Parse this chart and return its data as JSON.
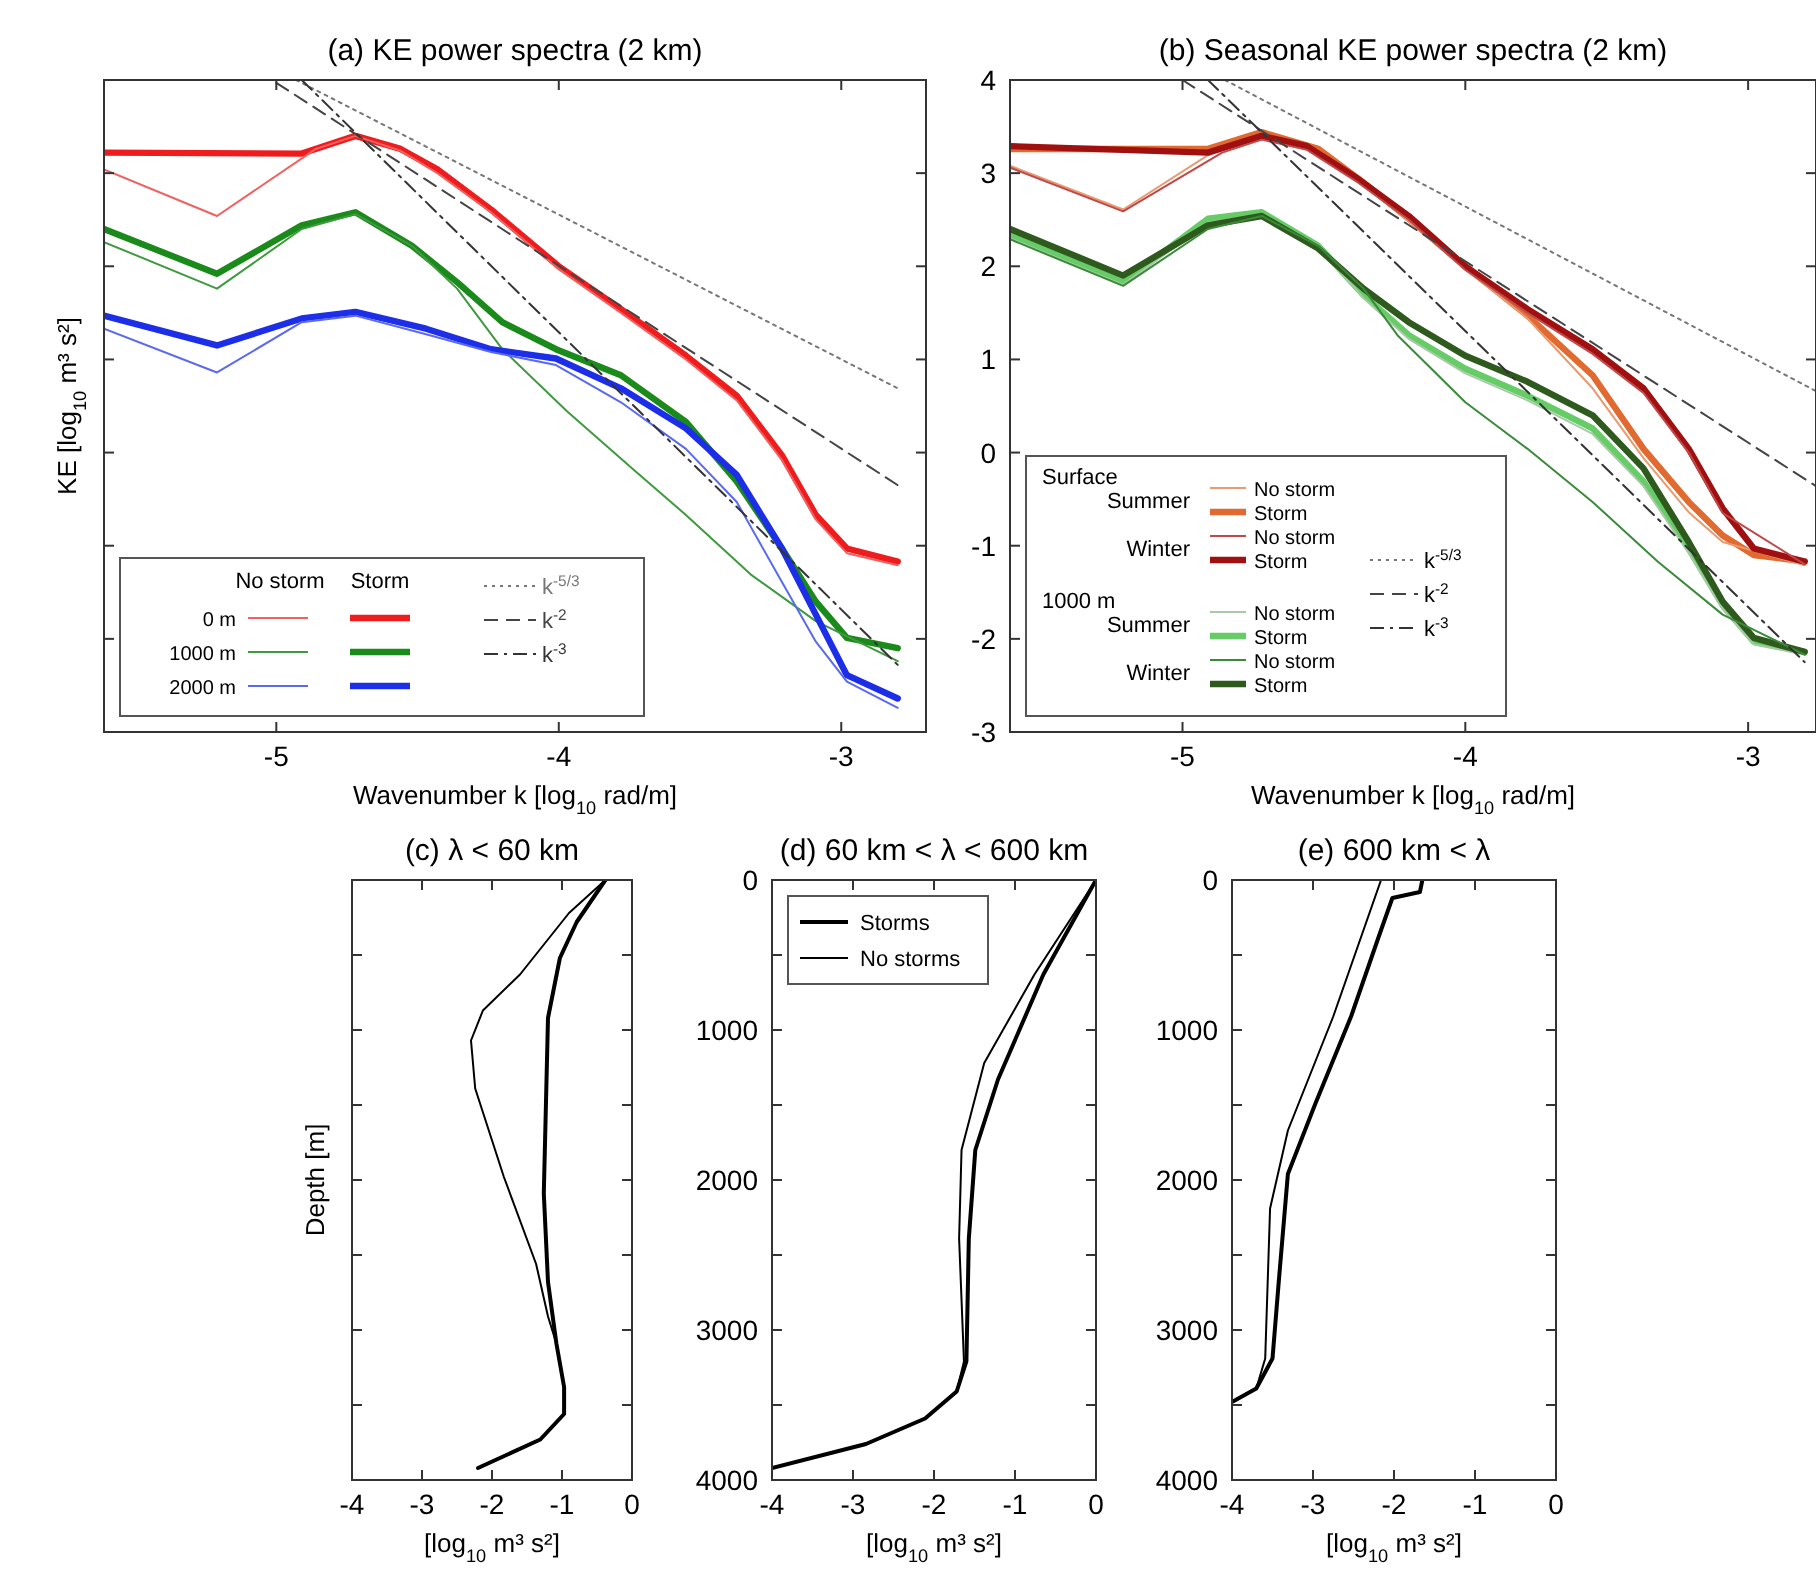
{
  "chart_data": [
    {
      "type": "line",
      "title": "(a) KE power spectra (2 km)",
      "xlabel": "Wavenumber k [log$_{10}$ rad/m]",
      "ylabel": "KE [log$_{10}$ m³ s²]",
      "xlim": [
        -5.61,
        -2.7
      ],
      "xticks": [
        -5,
        -4,
        -3
      ],
      "ylim": [
        -3,
        4
      ],
      "yticks": [
        -3,
        -2,
        -1,
        0,
        1,
        2,
        3,
        4
      ],
      "tick_labels": "x",
      "legend": "bottom left",
      "annotations": [
        "No storm",
        "Storm",
        "0 m",
        "1000 m",
        "2000 m"
      ],
      "series": [
        {
          "color": "#ee1c1c",
          "line_style": "solid",
          "x": [
            -5.61,
            -4.91,
            -4.72,
            -4.56,
            -4.43,
            -4.24,
            -4.0,
            -3.78,
            -3.55,
            -3.37,
            -3.21,
            -3.09,
            -2.98,
            -2.8
          ],
          "values": [
            3.22,
            3.21,
            3.4,
            3.26,
            3.04,
            2.61,
            2.0,
            1.54,
            1.04,
            0.61,
            -0.03,
            -0.67,
            -1.03,
            -1.17
          ]
        },
        {
          "color": "#f06060",
          "line_style": "solid",
          "x": [
            -5.61,
            -5.21,
            -4.86,
            -4.72,
            -4.56,
            -4.43,
            -4.24,
            -4.0,
            -3.78,
            -3.55,
            -3.37,
            -3.21,
            -3.09,
            -2.98,
            -2.8
          ],
          "values": [
            3.04,
            2.54,
            3.26,
            3.4,
            3.24,
            3.0,
            2.58,
            1.97,
            1.5,
            1.0,
            0.56,
            -0.08,
            -0.72,
            -1.08,
            -1.21
          ]
        },
        {
          "color": "#1a8a1a",
          "line_style": "solid",
          "x": [
            -5.61,
            -5.21,
            -4.91,
            -4.72,
            -4.52,
            -4.36,
            -4.2,
            -4.01,
            -3.78,
            -3.55,
            -3.37,
            -3.21,
            -3.09,
            -2.98,
            -2.8
          ],
          "values": [
            2.4,
            1.92,
            2.44,
            2.58,
            2.22,
            1.83,
            1.4,
            1.11,
            0.83,
            0.33,
            -0.31,
            -1.03,
            -1.6,
            -1.99,
            -2.1
          ]
        },
        {
          "color": "#3f9a3f",
          "line_style": "solid",
          "x": [
            -5.61,
            -5.21,
            -4.91,
            -4.72,
            -4.52,
            -4.36,
            -4.2,
            -3.97,
            -3.74,
            -3.55,
            -3.32,
            -3.09,
            -2.8
          ],
          "values": [
            2.26,
            1.76,
            2.4,
            2.56,
            2.22,
            1.76,
            1.11,
            0.44,
            -0.17,
            -0.67,
            -1.31,
            -1.81,
            -2.24
          ]
        },
        {
          "color": "#1c2ee8",
          "line_style": "solid",
          "x": [
            -5.61,
            -5.21,
            -4.91,
            -4.72,
            -4.47,
            -4.24,
            -4.01,
            -3.78,
            -3.55,
            -3.37,
            -3.21,
            -3.09,
            -2.98,
            -2.8
          ],
          "values": [
            1.47,
            1.15,
            1.44,
            1.51,
            1.33,
            1.11,
            1.01,
            0.69,
            0.26,
            -0.24,
            -1.03,
            -1.74,
            -2.39,
            -2.64
          ]
        },
        {
          "color": "#5a6af0",
          "line_style": "solid",
          "x": [
            -5.61,
            -5.21,
            -4.91,
            -4.72,
            -4.47,
            -4.24,
            -4.01,
            -3.78,
            -3.55,
            -3.37,
            -3.21,
            -3.09,
            -2.98,
            -2.8
          ],
          "values": [
            1.33,
            0.86,
            1.4,
            1.47,
            1.27,
            1.08,
            0.94,
            0.54,
            0.04,
            -0.53,
            -1.39,
            -2.03,
            -2.46,
            -2.74
          ]
        },
        {
          "name": "k$^{-5/3}$",
          "color": "#777777",
          "line_style": "dotted",
          "x": [
            -4.93,
            -2.8
          ],
          "values": [
            4.0,
            0.69
          ]
        },
        {
          "name": "k$^{-2}$",
          "color": "#444444",
          "line_style": "dashed",
          "x": [
            -5.0,
            -2.8
          ],
          "values": [
            3.97,
            -0.35
          ]
        },
        {
          "name": "k$^{-3}$",
          "color": "#333333",
          "line_style": "dashdot",
          "x": [
            -4.91,
            -2.8
          ],
          "values": [
            4.0,
            -2.28
          ]
        }
      ]
    },
    {
      "type": "line",
      "title": "(b) Seasonal KE power spectra (2 km)",
      "xlabel": "Wavenumber k [log$_{10}$ rad/m]",
      "xlim": [
        -5.61,
        -2.76
      ],
      "xticks": [
        -5,
        -4,
        -3
      ],
      "ylim": [
        -3,
        4
      ],
      "yticks": [
        -3,
        -2,
        -1,
        0,
        1,
        2,
        3,
        4
      ],
      "legend": "bottom left",
      "annotations": [
        "Surface",
        "Summer",
        "Winter",
        "1000 m",
        "Summer",
        "Winter"
      ],
      "series": [
        {
          "name": "Storm",
          "color": "#e06a30",
          "line_style": "solid",
          "x": [
            -5.61,
            -4.91,
            -4.72,
            -4.52,
            -4.36,
            -4.2,
            -4.0,
            -3.78,
            -3.55,
            -3.37,
            -3.21,
            -3.09,
            -2.98,
            -2.8
          ],
          "values": [
            3.26,
            3.26,
            3.44,
            3.26,
            2.9,
            2.51,
            2.0,
            1.47,
            0.83,
            0.04,
            -0.53,
            -0.89,
            -1.1,
            -1.17
          ]
        },
        {
          "name": "No storm",
          "color": "#e89a70",
          "line_style": "solid",
          "x": [
            -5.61,
            -5.21,
            -4.86,
            -4.72,
            -4.52,
            -4.36,
            -4.2,
            -4.0,
            -3.78,
            -3.55,
            -3.37,
            -3.21,
            -3.09,
            -2.8
          ],
          "values": [
            3.08,
            2.61,
            3.29,
            3.4,
            3.24,
            2.88,
            2.48,
            1.97,
            1.44,
            0.69,
            -0.06,
            -0.64,
            -0.96,
            -1.21
          ]
        },
        {
          "name": "Storm",
          "color": "#a01010",
          "line_style": "solid",
          "x": [
            -5.61,
            -4.91,
            -4.72,
            -4.56,
            -4.38,
            -4.2,
            -4.0,
            -3.78,
            -3.55,
            -3.37,
            -3.21,
            -3.09,
            -2.98,
            -2.8
          ],
          "values": [
            3.29,
            3.22,
            3.4,
            3.29,
            2.94,
            2.54,
            2.0,
            1.54,
            1.11,
            0.69,
            0.04,
            -0.6,
            -1.03,
            -1.17
          ]
        },
        {
          "name": "No storm",
          "color": "#c04848",
          "line_style": "solid",
          "x": [
            -5.61,
            -5.21,
            -4.86,
            -4.72,
            -4.56,
            -4.38,
            -4.2,
            -4.0,
            -3.78,
            -3.55,
            -3.37,
            -3.21,
            -3.09,
            -2.8
          ],
          "values": [
            3.06,
            2.59,
            3.22,
            3.36,
            3.25,
            2.9,
            2.5,
            1.96,
            1.5,
            1.06,
            0.64,
            0.0,
            -0.65,
            -1.2
          ]
        },
        {
          "name": "Storm",
          "color": "#66cc66",
          "line_style": "solid",
          "x": [
            -5.61,
            -5.21,
            -4.91,
            -4.72,
            -4.52,
            -4.36,
            -4.2,
            -4.0,
            -3.78,
            -3.55,
            -3.37,
            -3.21,
            -3.09,
            -2.98,
            -2.8
          ],
          "values": [
            2.33,
            1.83,
            2.51,
            2.58,
            2.22,
            1.69,
            1.26,
            0.9,
            0.61,
            0.26,
            -0.31,
            -1.03,
            -1.64,
            -2.03,
            -2.14
          ]
        },
        {
          "name": "No storm",
          "color": "#a8c8a8",
          "line_style": "solid",
          "x": [
            -5.61,
            -5.21,
            -4.91,
            -4.72,
            -4.52,
            -4.36,
            -4.2,
            -4.0,
            -3.78,
            -3.55,
            -3.37,
            -3.21,
            -3.09,
            -2.98,
            -2.8
          ],
          "values": [
            2.3,
            1.8,
            2.47,
            2.55,
            2.2,
            1.66,
            1.22,
            0.85,
            0.56,
            0.2,
            -0.36,
            -1.08,
            -1.68,
            -2.06,
            -2.17
          ]
        },
        {
          "name": "Storm",
          "color": "#2e5a1e",
          "line_style": "solid",
          "x": [
            -5.61,
            -5.21,
            -4.91,
            -4.72,
            -4.52,
            -4.36,
            -4.2,
            -4.0,
            -3.78,
            -3.55,
            -3.37,
            -3.21,
            -3.09,
            -2.98,
            -2.8
          ],
          "values": [
            2.4,
            1.9,
            2.44,
            2.54,
            2.19,
            1.76,
            1.4,
            1.04,
            0.76,
            0.4,
            -0.17,
            -0.96,
            -1.6,
            -1.99,
            -2.14
          ]
        },
        {
          "name": "No storm",
          "color": "#3a8a3a",
          "line_style": "solid",
          "x": [
            -5.61,
            -5.21,
            -4.91,
            -4.72,
            -4.52,
            -4.36,
            -4.24,
            -4.0,
            -3.78,
            -3.55,
            -3.32,
            -3.09,
            -2.8
          ],
          "values": [
            2.29,
            1.79,
            2.4,
            2.54,
            2.22,
            1.76,
            1.26,
            0.54,
            0.04,
            -0.53,
            -1.17,
            -1.74,
            -2.17
          ]
        },
        {
          "name": "k$^{-5/3}$",
          "color": "#777777",
          "line_style": "dotted",
          "x": [
            -4.85,
            -2.76
          ],
          "values": [
            4.0,
            0.66
          ]
        },
        {
          "name": "k$^{-2}$",
          "color": "#444444",
          "line_style": "dashed",
          "x": [
            -5.0,
            -2.76
          ],
          "values": [
            4.0,
            -0.36
          ]
        },
        {
          "name": "k$^{-3}$",
          "color": "#333333",
          "line_style": "dashdot",
          "x": [
            -4.91,
            -2.8
          ],
          "values": [
            4.0,
            -2.25
          ]
        }
      ]
    },
    {
      "type": "line",
      "title": "(c) λ < 60 km",
      "xlabel": "[log$_{10}$ m³ s²]",
      "ylabel": "Depth [m]",
      "xlim": [
        -4,
        0
      ],
      "xticks": [
        -4,
        -3,
        -2,
        -1,
        0
      ],
      "ylim": [
        4000,
        0
      ],
      "yticks": [
        0,
        {
          "value": 500,
          "label": null
        },
        1000,
        {
          "value": 1500,
          "label": null
        },
        2000,
        {
          "value": 2500,
          "label": null
        },
        3000,
        {
          "value": 3500,
          "label": null
        },
        4000
      ],
      "tick_labels": "x",
      "series": [
        {
          "color": "#000000",
          "line_style": "solid",
          "x": [
            -0.38,
            -0.79,
            -1.03,
            -1.2,
            -1.26,
            -1.2,
            -1.08,
            -0.97,
            -0.97,
            -1.31,
            -2.2
          ],
          "values": [
            0,
            280,
            520,
            920,
            2090,
            2680,
            3090,
            3380,
            3560,
            3730,
            3920
          ]
        },
        {
          "color": "#000000",
          "line_style": "solid",
          "x": [
            -0.38,
            -0.9,
            -1.6,
            -2.13,
            -2.3,
            -2.24,
            -1.83,
            -1.37,
            -1.2,
            -1.08,
            -0.97,
            -0.97,
            -1.31,
            -2.2
          ],
          "values": [
            0,
            220,
            630,
            870,
            1070,
            1390,
            1980,
            2560,
            2910,
            3090,
            3380,
            3560,
            3730,
            3920
          ]
        }
      ]
    },
    {
      "type": "line",
      "title": "(d) 60 km < λ < 600 km",
      "xlabel": "[log$_{10}$ m³ s²]",
      "xlim": [
        -4,
        0
      ],
      "xticks": [
        -4,
        -3,
        -2,
        -1,
        0
      ],
      "ylim": [
        4000,
        0
      ],
      "yticks": [
        0,
        {
          "value": 500,
          "label": null
        },
        1000,
        {
          "value": 1500,
          "label": null
        },
        2000,
        {
          "value": 2500,
          "label": null
        },
        3000,
        {
          "value": 3500,
          "label": null
        },
        4000
      ],
      "legend": "top left",
      "series": [
        {
          "name": "Storms",
          "color": "#000000",
          "line_style": "solid",
          "x": [
            0,
            -0.65,
            -1.21,
            -1.49,
            -1.57,
            -1.6,
            -1.72,
            -2.11,
            -2.84,
            -4
          ],
          "values": [
            0,
            630,
            1330,
            1800,
            2390,
            3210,
            3410,
            3590,
            3760,
            3920
          ]
        },
        {
          "name": "No storms",
          "color": "#000000",
          "line_style": "solid",
          "x": [
            0,
            -0.76,
            -1.38,
            -1.66,
            -1.69,
            -1.63,
            -1.72,
            -2.11,
            -2.84,
            -4
          ],
          "values": [
            0,
            630,
            1220,
            1800,
            2390,
            3210,
            3410,
            3590,
            3760,
            3920
          ]
        }
      ]
    },
    {
      "type": "line",
      "title": "(e) 600 km < λ",
      "xlabel": "[log$_{10}$ m³ s²]",
      "xlim": [
        -4,
        0
      ],
      "xticks": [
        -4,
        -3,
        -2,
        -1,
        0
      ],
      "ylim": [
        4000,
        0
      ],
      "yticks": [
        0,
        {
          "value": 500,
          "label": null
        },
        1000,
        {
          "value": 1500,
          "label": null
        },
        2000,
        {
          "value": 2500,
          "label": null
        },
        3000,
        {
          "value": 3500,
          "label": null
        },
        4000
      ],
      "series": [
        {
          "color": "#000000",
          "line_style": "solid",
          "x": [
            -1.65,
            -1.68,
            -2.02,
            -2.19,
            -2.53,
            -2.97,
            -3.31,
            -3.42,
            -3.5,
            -3.7,
            -4
          ],
          "values": [
            0,
            80,
            120,
            380,
            910,
            1490,
            1960,
            2660,
            3190,
            3390,
            3480
          ]
        },
        {
          "color": "#000000",
          "line_style": "solid",
          "x": [
            -2.16,
            -2.75,
            -3.31,
            -3.53,
            -3.59,
            -3.7,
            -4
          ],
          "values": [
            0,
            910,
            1670,
            2190,
            3190,
            3390,
            3480
          ]
        }
      ]
    }
  ]
}
